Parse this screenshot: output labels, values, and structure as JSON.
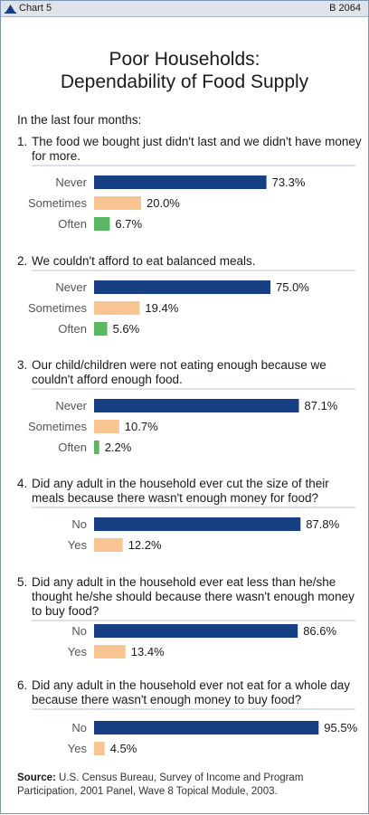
{
  "header": {
    "chart_label": "Chart 5",
    "chart_number": "B 2064"
  },
  "title_lines": [
    "Poor Households:",
    "Dependability of Food Supply"
  ],
  "intro": "In the last four months:",
  "colors": {
    "Never": "#173f84",
    "No": "#173f84",
    "Sometimes": "#f8c592",
    "Yes": "#f8c592",
    "Often": "#5cb763",
    "divider": "#b9c3d0"
  },
  "chart_data": [
    {
      "type": "bar",
      "question_number": "1.",
      "question": [
        "The food we bought just didn't last and we didn't have money",
        "for more."
      ],
      "categories": [
        "Never",
        "Sometimes",
        "Often"
      ],
      "values": [
        73.3,
        20.0,
        6.7
      ],
      "value_labels": [
        "73.3%",
        "20.0%",
        "6.7%"
      ]
    },
    {
      "type": "bar",
      "question_number": "2.",
      "question": [
        "We couldn't afford to eat balanced meals."
      ],
      "categories": [
        "Never",
        "Sometimes",
        "Often"
      ],
      "values": [
        75.0,
        19.4,
        5.6
      ],
      "value_labels": [
        "75.0%",
        "19.4%",
        "5.6%"
      ]
    },
    {
      "type": "bar",
      "question_number": "3.",
      "question": [
        "Our child/children were not eating enough because we",
        "couldn't afford enough food."
      ],
      "categories": [
        "Never",
        "Sometimes",
        "Often"
      ],
      "values": [
        87.1,
        10.7,
        2.2
      ],
      "value_labels": [
        "87.1%",
        "10.7%",
        "2.2%"
      ]
    },
    {
      "type": "bar",
      "question_number": "4.",
      "question": [
        "Did any adult in the household ever cut the size of their",
        "meals because there wasn't enough money for food?"
      ],
      "categories": [
        "No",
        "Yes"
      ],
      "values": [
        87.8,
        12.2
      ],
      "value_labels": [
        "87.8%",
        "12.2%"
      ]
    },
    {
      "type": "bar",
      "question_number": "5.",
      "question": [
        "Did any adult in the household ever eat less than he/she",
        "thought he/she should because there wasn't enough money",
        "to buy food?"
      ],
      "categories": [
        "No",
        "Yes"
      ],
      "values": [
        86.6,
        13.4
      ],
      "value_labels": [
        "86.6%",
        "13.4%"
      ]
    },
    {
      "type": "bar",
      "question_number": "6.",
      "question": [
        "Did any adult in the household ever not eat for a whole day",
        "because there wasn't enough money to buy food?"
      ],
      "categories": [
        "No",
        "Yes"
      ],
      "values": [
        95.5,
        4.5
      ],
      "value_labels": [
        "95.5%",
        "4.5%"
      ]
    }
  ],
  "footer": {
    "source_label": "Source:",
    "source_text": "U.S. Census Bureau, Survey of Income and Program Participation, 2001 Panel, Wave 8 Topical Module, 2003."
  }
}
